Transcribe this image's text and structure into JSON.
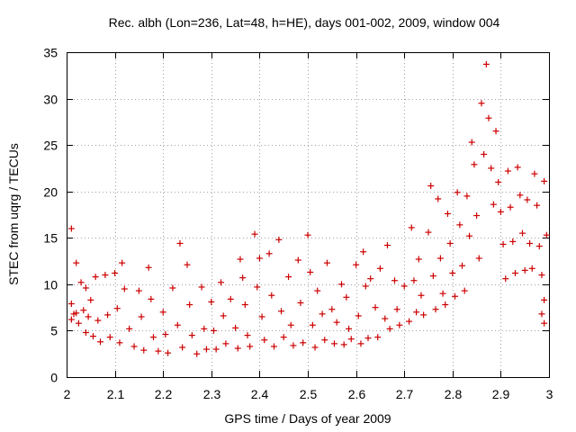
{
  "chart_data": {
    "type": "scatter",
    "title": "Rec. albh (Lon=236, Lat=48, h=HE), days 001-002, 2009, window 004",
    "xlabel": "GPS time / Days of year 2009",
    "ylabel": "STEC from uqrg / TECUs",
    "xlim": [
      2,
      3
    ],
    "ylim": [
      0,
      35
    ],
    "xticks": [
      2,
      2.1,
      2.2,
      2.3,
      2.4,
      2.5,
      2.6,
      2.7,
      2.8,
      2.9,
      3
    ],
    "xtick_labels": [
      "2",
      "2.1",
      "2.2",
      "2.3",
      "2.4",
      "2.5",
      "2.6",
      "2.7",
      "2.8",
      "2.9",
      "3"
    ],
    "yticks": [
      0,
      5,
      10,
      15,
      20,
      25,
      30,
      35
    ],
    "ytick_labels": [
      "0",
      "5",
      "10",
      "15",
      "20",
      "25",
      "30",
      "35"
    ],
    "grid": true,
    "series": [
      {
        "name": "STEC",
        "marker": "plus",
        "color": "#cc0000",
        "points": [
          [
            2.01,
            16.0
          ],
          [
            2.01,
            7.9
          ],
          [
            2.01,
            6.2
          ],
          [
            2.015,
            6.8
          ],
          [
            2.02,
            12.3
          ],
          [
            2.02,
            6.9
          ],
          [
            2.025,
            5.8
          ],
          [
            2.03,
            10.2
          ],
          [
            2.035,
            7.2
          ],
          [
            2.04,
            9.6
          ],
          [
            2.04,
            4.8
          ],
          [
            2.045,
            6.5
          ],
          [
            2.05,
            8.3
          ],
          [
            2.055,
            4.4
          ],
          [
            2.06,
            10.8
          ],
          [
            2.065,
            6.1
          ],
          [
            2.07,
            3.8
          ],
          [
            2.08,
            11.0
          ],
          [
            2.085,
            6.7
          ],
          [
            2.09,
            4.3
          ],
          [
            2.1,
            11.2
          ],
          [
            2.105,
            7.4
          ],
          [
            2.11,
            3.7
          ],
          [
            2.115,
            12.3
          ],
          [
            2.12,
            9.5
          ],
          [
            2.13,
            5.2
          ],
          [
            2.14,
            3.3
          ],
          [
            2.15,
            9.3
          ],
          [
            2.155,
            6.5
          ],
          [
            2.16,
            2.9
          ],
          [
            2.17,
            11.8
          ],
          [
            2.175,
            8.4
          ],
          [
            2.18,
            4.3
          ],
          [
            2.19,
            2.8
          ],
          [
            2.2,
            7.0
          ],
          [
            2.205,
            4.6
          ],
          [
            2.21,
            2.6
          ],
          [
            2.22,
            9.6
          ],
          [
            2.23,
            5.6
          ],
          [
            2.235,
            14.4
          ],
          [
            2.24,
            3.2
          ],
          [
            2.25,
            12.1
          ],
          [
            2.255,
            7.8
          ],
          [
            2.26,
            4.5
          ],
          [
            2.27,
            2.5
          ],
          [
            2.28,
            9.7
          ],
          [
            2.285,
            5.2
          ],
          [
            2.29,
            3.0
          ],
          [
            2.3,
            8.1
          ],
          [
            2.305,
            5.0
          ],
          [
            2.31,
            3.0
          ],
          [
            2.32,
            10.2
          ],
          [
            2.325,
            6.6
          ],
          [
            2.33,
            3.6
          ],
          [
            2.34,
            8.4
          ],
          [
            2.35,
            5.3
          ],
          [
            2.355,
            3.1
          ],
          [
            2.36,
            12.7
          ],
          [
            2.365,
            10.7
          ],
          [
            2.37,
            7.8
          ],
          [
            2.375,
            4.5
          ],
          [
            2.38,
            3.3
          ],
          [
            2.39,
            15.4
          ],
          [
            2.395,
            9.7
          ],
          [
            2.4,
            12.8
          ],
          [
            2.405,
            6.5
          ],
          [
            2.41,
            4.0
          ],
          [
            2.42,
            13.3
          ],
          [
            2.425,
            8.8
          ],
          [
            2.43,
            3.3
          ],
          [
            2.44,
            14.8
          ],
          [
            2.445,
            7.1
          ],
          [
            2.45,
            4.3
          ],
          [
            2.46,
            10.8
          ],
          [
            2.465,
            5.6
          ],
          [
            2.47,
            3.4
          ],
          [
            2.48,
            12.6
          ],
          [
            2.485,
            8.0
          ],
          [
            2.49,
            3.7
          ],
          [
            2.5,
            15.3
          ],
          [
            2.505,
            11.3
          ],
          [
            2.51,
            5.6
          ],
          [
            2.515,
            3.2
          ],
          [
            2.52,
            9.3
          ],
          [
            2.53,
            6.8
          ],
          [
            2.535,
            4.0
          ],
          [
            2.54,
            12.3
          ],
          [
            2.55,
            7.3
          ],
          [
            2.555,
            3.6
          ],
          [
            2.56,
            5.9
          ],
          [
            2.57,
            10.0
          ],
          [
            2.575,
            3.5
          ],
          [
            2.58,
            8.6
          ],
          [
            2.585,
            5.2
          ],
          [
            2.59,
            4.1
          ],
          [
            2.6,
            12.1
          ],
          [
            2.605,
            6.6
          ],
          [
            2.61,
            3.6
          ],
          [
            2.615,
            13.5
          ],
          [
            2.62,
            9.8
          ],
          [
            2.625,
            4.2
          ],
          [
            2.63,
            10.6
          ],
          [
            2.64,
            7.5
          ],
          [
            2.645,
            4.3
          ],
          [
            2.65,
            11.7
          ],
          [
            2.66,
            6.3
          ],
          [
            2.665,
            14.2
          ],
          [
            2.67,
            5.2
          ],
          [
            2.68,
            10.4
          ],
          [
            2.685,
            7.3
          ],
          [
            2.69,
            5.6
          ],
          [
            2.7,
            9.8
          ],
          [
            2.71,
            6.0
          ],
          [
            2.715,
            16.1
          ],
          [
            2.72,
            10.4
          ],
          [
            2.725,
            7.0
          ],
          [
            2.73,
            12.7
          ],
          [
            2.735,
            8.8
          ],
          [
            2.74,
            6.7
          ],
          [
            2.75,
            15.6
          ],
          [
            2.755,
            20.6
          ],
          [
            2.76,
            10.9
          ],
          [
            2.765,
            7.3
          ],
          [
            2.77,
            19.2
          ],
          [
            2.775,
            12.8
          ],
          [
            2.78,
            9.0
          ],
          [
            2.785,
            7.8
          ],
          [
            2.79,
            17.6
          ],
          [
            2.795,
            14.4
          ],
          [
            2.8,
            11.2
          ],
          [
            2.805,
            8.7
          ],
          [
            2.81,
            19.9
          ],
          [
            2.815,
            16.4
          ],
          [
            2.82,
            12.0
          ],
          [
            2.825,
            9.3
          ],
          [
            2.83,
            19.5
          ],
          [
            2.835,
            15.2
          ],
          [
            2.84,
            25.3
          ],
          [
            2.845,
            22.9
          ],
          [
            2.85,
            17.4
          ],
          [
            2.855,
            12.8
          ],
          [
            2.86,
            29.5
          ],
          [
            2.865,
            24.0
          ],
          [
            2.87,
            33.7
          ],
          [
            2.875,
            27.9
          ],
          [
            2.88,
            22.5
          ],
          [
            2.885,
            18.6
          ],
          [
            2.89,
            26.5
          ],
          [
            2.895,
            21.0
          ],
          [
            2.9,
            17.8
          ],
          [
            2.905,
            14.3
          ],
          [
            2.91,
            10.6
          ],
          [
            2.915,
            22.2
          ],
          [
            2.92,
            18.3
          ],
          [
            2.925,
            14.6
          ],
          [
            2.93,
            11.2
          ],
          [
            2.935,
            22.6
          ],
          [
            2.94,
            19.6
          ],
          [
            2.945,
            15.5
          ],
          [
            2.95,
            11.5
          ],
          [
            2.955,
            19.1
          ],
          [
            2.96,
            14.4
          ],
          [
            2.965,
            11.7
          ],
          [
            2.97,
            21.9
          ],
          [
            2.975,
            18.5
          ],
          [
            2.98,
            14.1
          ],
          [
            2.985,
            11.0
          ],
          [
            2.99,
            21.1
          ],
          [
            2.995,
            15.3
          ],
          [
            2.99,
            8.3
          ],
          [
            2.985,
            6.8
          ],
          [
            2.99,
            5.8
          ]
        ]
      }
    ]
  }
}
